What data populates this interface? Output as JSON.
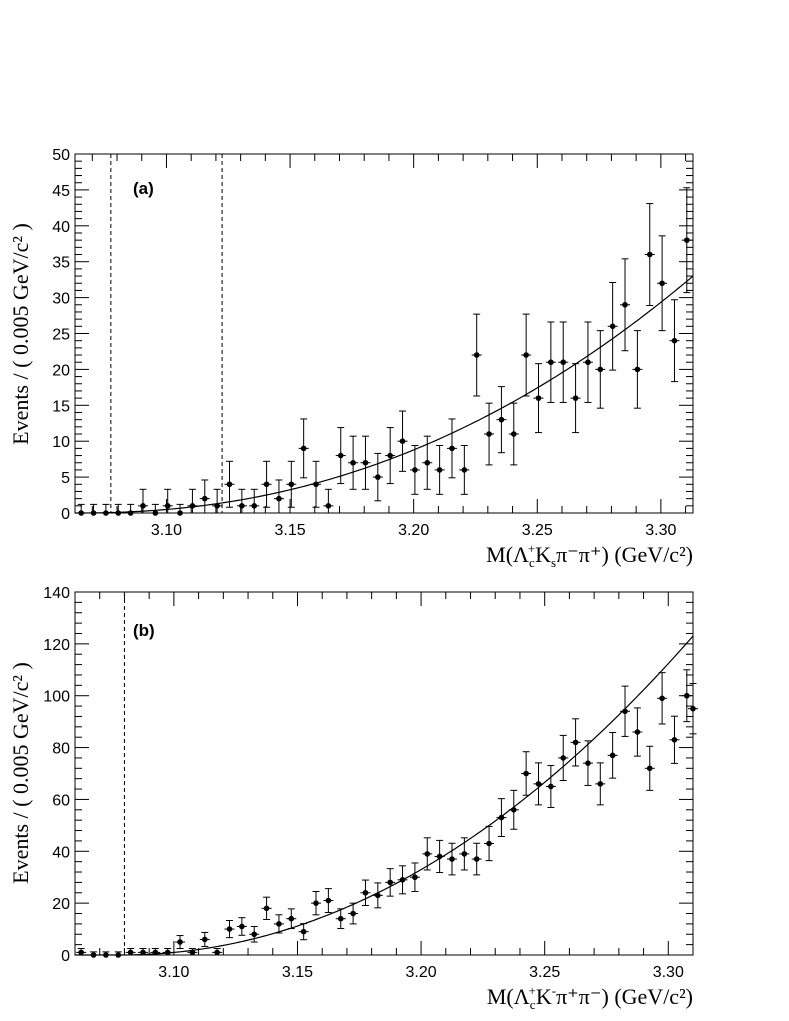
{
  "chart_data": [
    {
      "type": "scatter",
      "panel_label": "(a)",
      "xlabel": "M(Λ⁺ᴄKₛπ⁻π⁺) (GeV/c²)",
      "xlabel_parts": {
        "pre": "M(Λ",
        "sub": "c",
        "sup": "+",
        "mid": "K",
        "sub2": "s",
        "rest": "π⁻π⁺) (GeV/c²)"
      },
      "ylabel": "Events / ( 0.005 GeV/c² )",
      "xlim": [
        3.063,
        3.313
      ],
      "ylim": [
        0,
        50
      ],
      "x_ticks": [
        "3.10",
        "3.15",
        "3.20",
        "3.25",
        "3.30"
      ],
      "y_ticks": [
        "0",
        "5",
        "10",
        "15",
        "20",
        "25",
        "30",
        "35",
        "40",
        "45",
        "50"
      ],
      "dashed_lines_x": [
        3.0775,
        3.1225
      ],
      "fit": {
        "type": "threshold_power",
        "x0": 3.063,
        "power": 2.2,
        "y_at_xmax": 33.0,
        "xmax": 3.313
      },
      "x": [
        3.0655,
        3.0705,
        3.0755,
        3.0805,
        3.0855,
        3.0905,
        3.0955,
        3.1005,
        3.1055,
        3.1105,
        3.1155,
        3.1205,
        3.1255,
        3.1305,
        3.1355,
        3.1405,
        3.1455,
        3.1505,
        3.1555,
        3.1605,
        3.1655,
        3.1705,
        3.1755,
        3.1805,
        3.1855,
        3.1905,
        3.1955,
        3.2005,
        3.2055,
        3.2105,
        3.2155,
        3.2205,
        3.2255,
        3.2305,
        3.2355,
        3.2405,
        3.2455,
        3.2505,
        3.2555,
        3.2605,
        3.2655,
        3.2705,
        3.2755,
        3.2805,
        3.2855,
        3.2905,
        3.2955,
        3.3005,
        3.3055,
        3.3105
      ],
      "y": [
        0,
        0,
        0,
        0,
        0,
        1,
        0,
        1,
        0,
        1,
        2,
        1,
        4,
        1,
        1,
        4,
        2,
        4,
        9,
        4,
        1,
        8,
        7,
        7,
        5,
        8,
        10,
        6,
        7,
        6,
        9,
        6,
        22,
        11,
        13,
        11,
        22,
        16,
        21,
        21,
        16,
        21,
        20,
        26,
        29,
        20,
        36,
        32,
        24,
        38
      ],
      "err": [
        1.2,
        1.2,
        1.2,
        1.2,
        1.2,
        2.3,
        1.2,
        2.3,
        1.2,
        2.3,
        2.6,
        2.3,
        3.2,
        2.3,
        2.3,
        3.2,
        2.6,
        3.2,
        4.1,
        3.2,
        2.3,
        3.9,
        3.7,
        3.7,
        3.3,
        3.9,
        4.2,
        3.4,
        3.7,
        3.4,
        4.1,
        3.4,
        5.7,
        4.3,
        4.6,
        4.3,
        5.7,
        4.8,
        5.6,
        5.6,
        4.8,
        5.6,
        5.4,
        6.1,
        6.4,
        5.4,
        7.1,
        6.6,
        5.7,
        7.3
      ]
    },
    {
      "type": "scatter",
      "panel_label": "(b)",
      "xlabel": "M(Λ⁺ᴄK⁻π⁺π⁻) (GeV/c²)",
      "xlabel_parts": {
        "pre": "M(Λ",
        "sub": "c",
        "sup": "+",
        "mid": "K",
        "sup2": "-",
        "rest": "π⁺π⁻) (GeV/c²)"
      },
      "ylabel": "Events / ( 0.005 GeV/c² )",
      "xlim": [
        3.06,
        3.31
      ],
      "ylim": [
        0,
        140
      ],
      "x_ticks": [
        "3.10",
        "3.15",
        "3.20",
        "3.25",
        "3.30"
      ],
      "y_ticks": [
        "0",
        "20",
        "40",
        "60",
        "80",
        "100",
        "120",
        "140"
      ],
      "dashed_lines_x": [
        3.08
      ],
      "fit": {
        "type": "threshold_power",
        "x0": 3.078,
        "power": 2.05,
        "y_at_xmax": 123.0,
        "xmax": 3.31
      },
      "x": [
        3.0625,
        3.0675,
        3.0725,
        3.0775,
        3.0825,
        3.0875,
        3.0925,
        3.0975,
        3.1025,
        3.1075,
        3.1125,
        3.1175,
        3.1225,
        3.1275,
        3.1325,
        3.1375,
        3.1425,
        3.1475,
        3.1525,
        3.1575,
        3.1625,
        3.1675,
        3.1725,
        3.1775,
        3.1825,
        3.1875,
        3.1925,
        3.1975,
        3.2025,
        3.2075,
        3.2125,
        3.2175,
        3.2225,
        3.2275,
        3.2325,
        3.2375,
        3.2425,
        3.2475,
        3.2525,
        3.2575,
        3.2625,
        3.2675,
        3.2725,
        3.2775,
        3.2825,
        3.2875,
        3.2925,
        3.2975,
        3.3025,
        3.3075
      ],
      "y": [
        1,
        0,
        0,
        0,
        1,
        1,
        1,
        1,
        5,
        1,
        6,
        1,
        10,
        11,
        8,
        18,
        12,
        14,
        9,
        20,
        21,
        14,
        16,
        24,
        23,
        28,
        29,
        30,
        39,
        38,
        37,
        39,
        37,
        43,
        53,
        56,
        70,
        66,
        65,
        76,
        82,
        74,
        66,
        77,
        94,
        86,
        72,
        99,
        83,
        100
      ],
      "err": [
        1.5,
        1.2,
        1.2,
        1.2,
        1.5,
        1.5,
        1.5,
        1.5,
        2.5,
        1.5,
        2.7,
        1.5,
        3.3,
        3.4,
        3.0,
        4.3,
        3.5,
        3.8,
        3.1,
        4.5,
        4.6,
        3.8,
        4.0,
        4.9,
        4.8,
        5.3,
        5.4,
        5.5,
        6.2,
        6.2,
        6.1,
        6.2,
        6.1,
        6.6,
        7.3,
        7.5,
        8.4,
        8.1,
        8.1,
        8.7,
        9.1,
        8.6,
        8.1,
        8.8,
        9.7,
        9.3,
        8.5,
        9.9,
        9.1,
        10.0
      ]
    }
  ],
  "extra_point_b": {
    "x": 3.3075,
    "y": 95,
    "err": 9.7
  }
}
